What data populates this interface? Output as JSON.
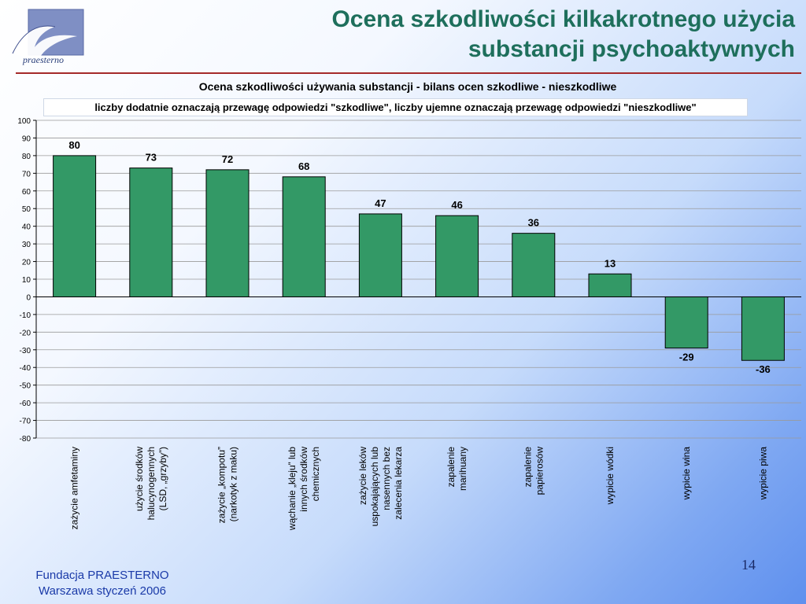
{
  "slide": {
    "title_line1": "Ocena szkodliwości kilkakrotnego użycia",
    "title_line2": "substancji psychoaktywnych",
    "logo_text": "praesterno",
    "footer_line1": "Fundacja PRAESTERNO",
    "footer_line2": "Warszawa styczeń 2006",
    "page_number": "14",
    "colors": {
      "title": "#1e6f5c",
      "rule": "#a52a2a",
      "bar": "#339966",
      "footer": "#1a3aa8"
    }
  },
  "chart_data": {
    "type": "bar",
    "title": "Ocena szkodliwości używania substancji - bilans ocen szkodliwe - nieszkodliwe",
    "subtitle": "liczby dodatnie oznaczają przewagę odpowiedzi \"szkodliwe\", liczby ujemne oznaczają przewagę odpowiedzi \"nieszkodliwe\"",
    "categories": [
      [
        "zażycie amfetaminy"
      ],
      [
        "użycie środków",
        "halucynogennych",
        "(LSD, „grzyby”)"
      ],
      [
        "zażycie „kompotu”",
        "(narkotyk z maku)"
      ],
      [
        "wąchanie „kleju” lub",
        "innych środków",
        "chemicznych"
      ],
      [
        "zażycie leków",
        "uspokajających lub",
        "nasennych bez",
        "zalecenia lekarza"
      ],
      [
        "zapalenie",
        "marihuany"
      ],
      [
        "zapalenie",
        "papierosów"
      ],
      [
        "wypicie wódki"
      ],
      [
        "wypicie wina"
      ],
      [
        "wypicie piwa"
      ]
    ],
    "values": [
      80,
      73,
      72,
      68,
      47,
      46,
      36,
      13,
      -29,
      -36
    ],
    "ylim": [
      -80,
      100
    ],
    "yticks": [
      100,
      90,
      80,
      70,
      60,
      50,
      40,
      30,
      20,
      10,
      0,
      -10,
      -20,
      -30,
      -40,
      -50,
      -60,
      -70,
      -80
    ],
    "xlabel": "",
    "ylabel": "",
    "grid": true,
    "legend": "none",
    "bar_color": "#339966"
  }
}
